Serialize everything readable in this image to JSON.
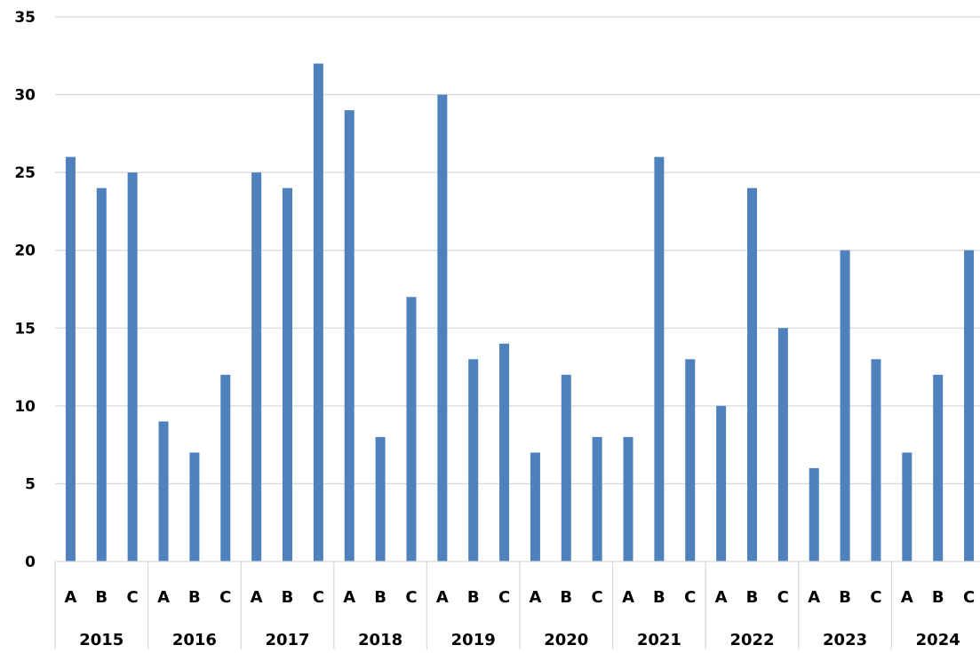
{
  "chart_data": {
    "type": "bar",
    "title": "",
    "xlabel": "",
    "ylabel": "",
    "ylim": [
      0,
      35
    ],
    "yticks": [
      "0",
      "5",
      "10",
      "15",
      "20",
      "25",
      "30",
      "35"
    ],
    "grid": true,
    "legend": "none",
    "bar_color": "#4F81BD",
    "grid_color": "#D9D9D9",
    "groups": [
      {
        "year": "2015",
        "categories": [
          "A",
          "B",
          "C"
        ],
        "values": [
          26,
          24,
          25
        ]
      },
      {
        "year": "2016",
        "categories": [
          "A",
          "B",
          "C"
        ],
        "values": [
          9,
          7,
          12
        ]
      },
      {
        "year": "2017",
        "categories": [
          "A",
          "B",
          "C"
        ],
        "values": [
          25,
          24,
          32
        ]
      },
      {
        "year": "2018",
        "categories": [
          "A",
          "B",
          "C"
        ],
        "values": [
          29,
          8,
          17
        ]
      },
      {
        "year": "2019",
        "categories": [
          "A",
          "B",
          "C"
        ],
        "values": [
          30,
          13,
          14
        ]
      },
      {
        "year": "2020",
        "categories": [
          "A",
          "B",
          "C"
        ],
        "values": [
          7,
          12,
          8
        ]
      },
      {
        "year": "2021",
        "categories": [
          "A",
          "B",
          "C"
        ],
        "values": [
          8,
          26,
          13
        ]
      },
      {
        "year": "2022",
        "categories": [
          "A",
          "B",
          "C"
        ],
        "values": [
          10,
          24,
          15
        ]
      },
      {
        "year": "2023",
        "categories": [
          "A",
          "B",
          "C"
        ],
        "values": [
          6,
          20,
          13
        ]
      },
      {
        "year": "2024",
        "categories": [
          "A",
          "B",
          "C"
        ],
        "values": [
          7,
          12,
          20
        ]
      }
    ]
  }
}
